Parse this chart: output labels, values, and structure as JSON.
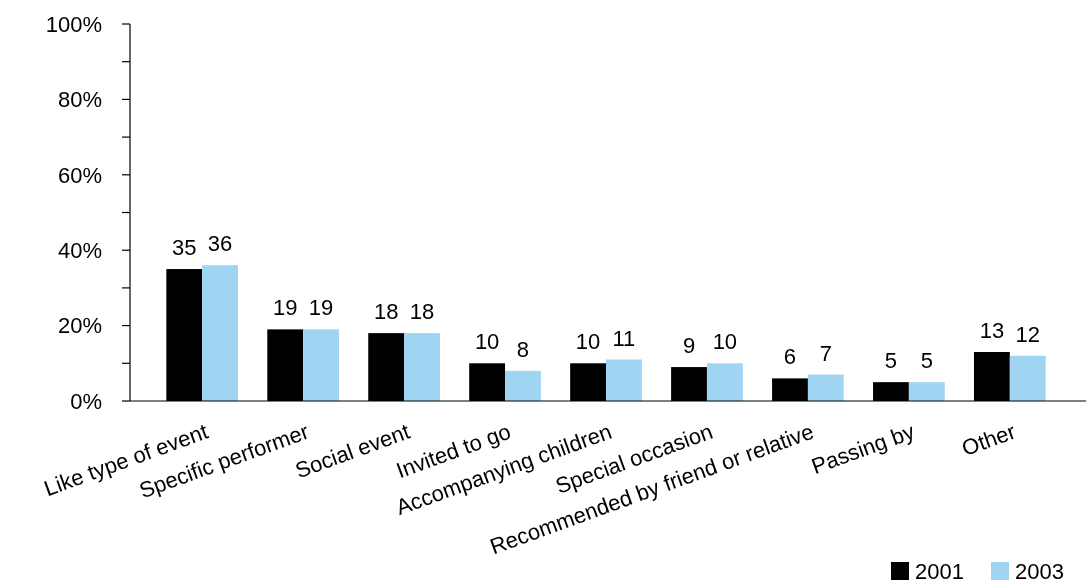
{
  "chart_data": {
    "type": "bar",
    "categories": [
      "Like type of event",
      "Specific performer",
      "Social event",
      "Invited to go",
      "Accompanying children",
      "Special occasion",
      "Recommended by friend or relative",
      "Passing by",
      "Other"
    ],
    "series": [
      {
        "name": "2001",
        "color": "#000000",
        "values": [
          35,
          19,
          18,
          10,
          10,
          9,
          6,
          5,
          13
        ]
      },
      {
        "name": "2003",
        "color": "#9fd4f2",
        "values": [
          36,
          19,
          18,
          8,
          11,
          10,
          7,
          5,
          12
        ]
      }
    ],
    "ylim": [
      0,
      100
    ],
    "yticks": [
      {
        "value": 0,
        "label": "0%"
      },
      {
        "value": 10,
        "label": null
      },
      {
        "value": 20,
        "label": "20%"
      },
      {
        "value": 30,
        "label": null
      },
      {
        "value": 40,
        "label": "40%"
      },
      {
        "value": 50,
        "label": null
      },
      {
        "value": 60,
        "label": "60%"
      },
      {
        "value": 70,
        "label": null
      },
      {
        "value": 80,
        "label": "80%"
      },
      {
        "value": 90,
        "label": null
      },
      {
        "value": 100,
        "label": "100%"
      }
    ],
    "data_labels": true,
    "grid": false,
    "legend": "bottom right"
  }
}
